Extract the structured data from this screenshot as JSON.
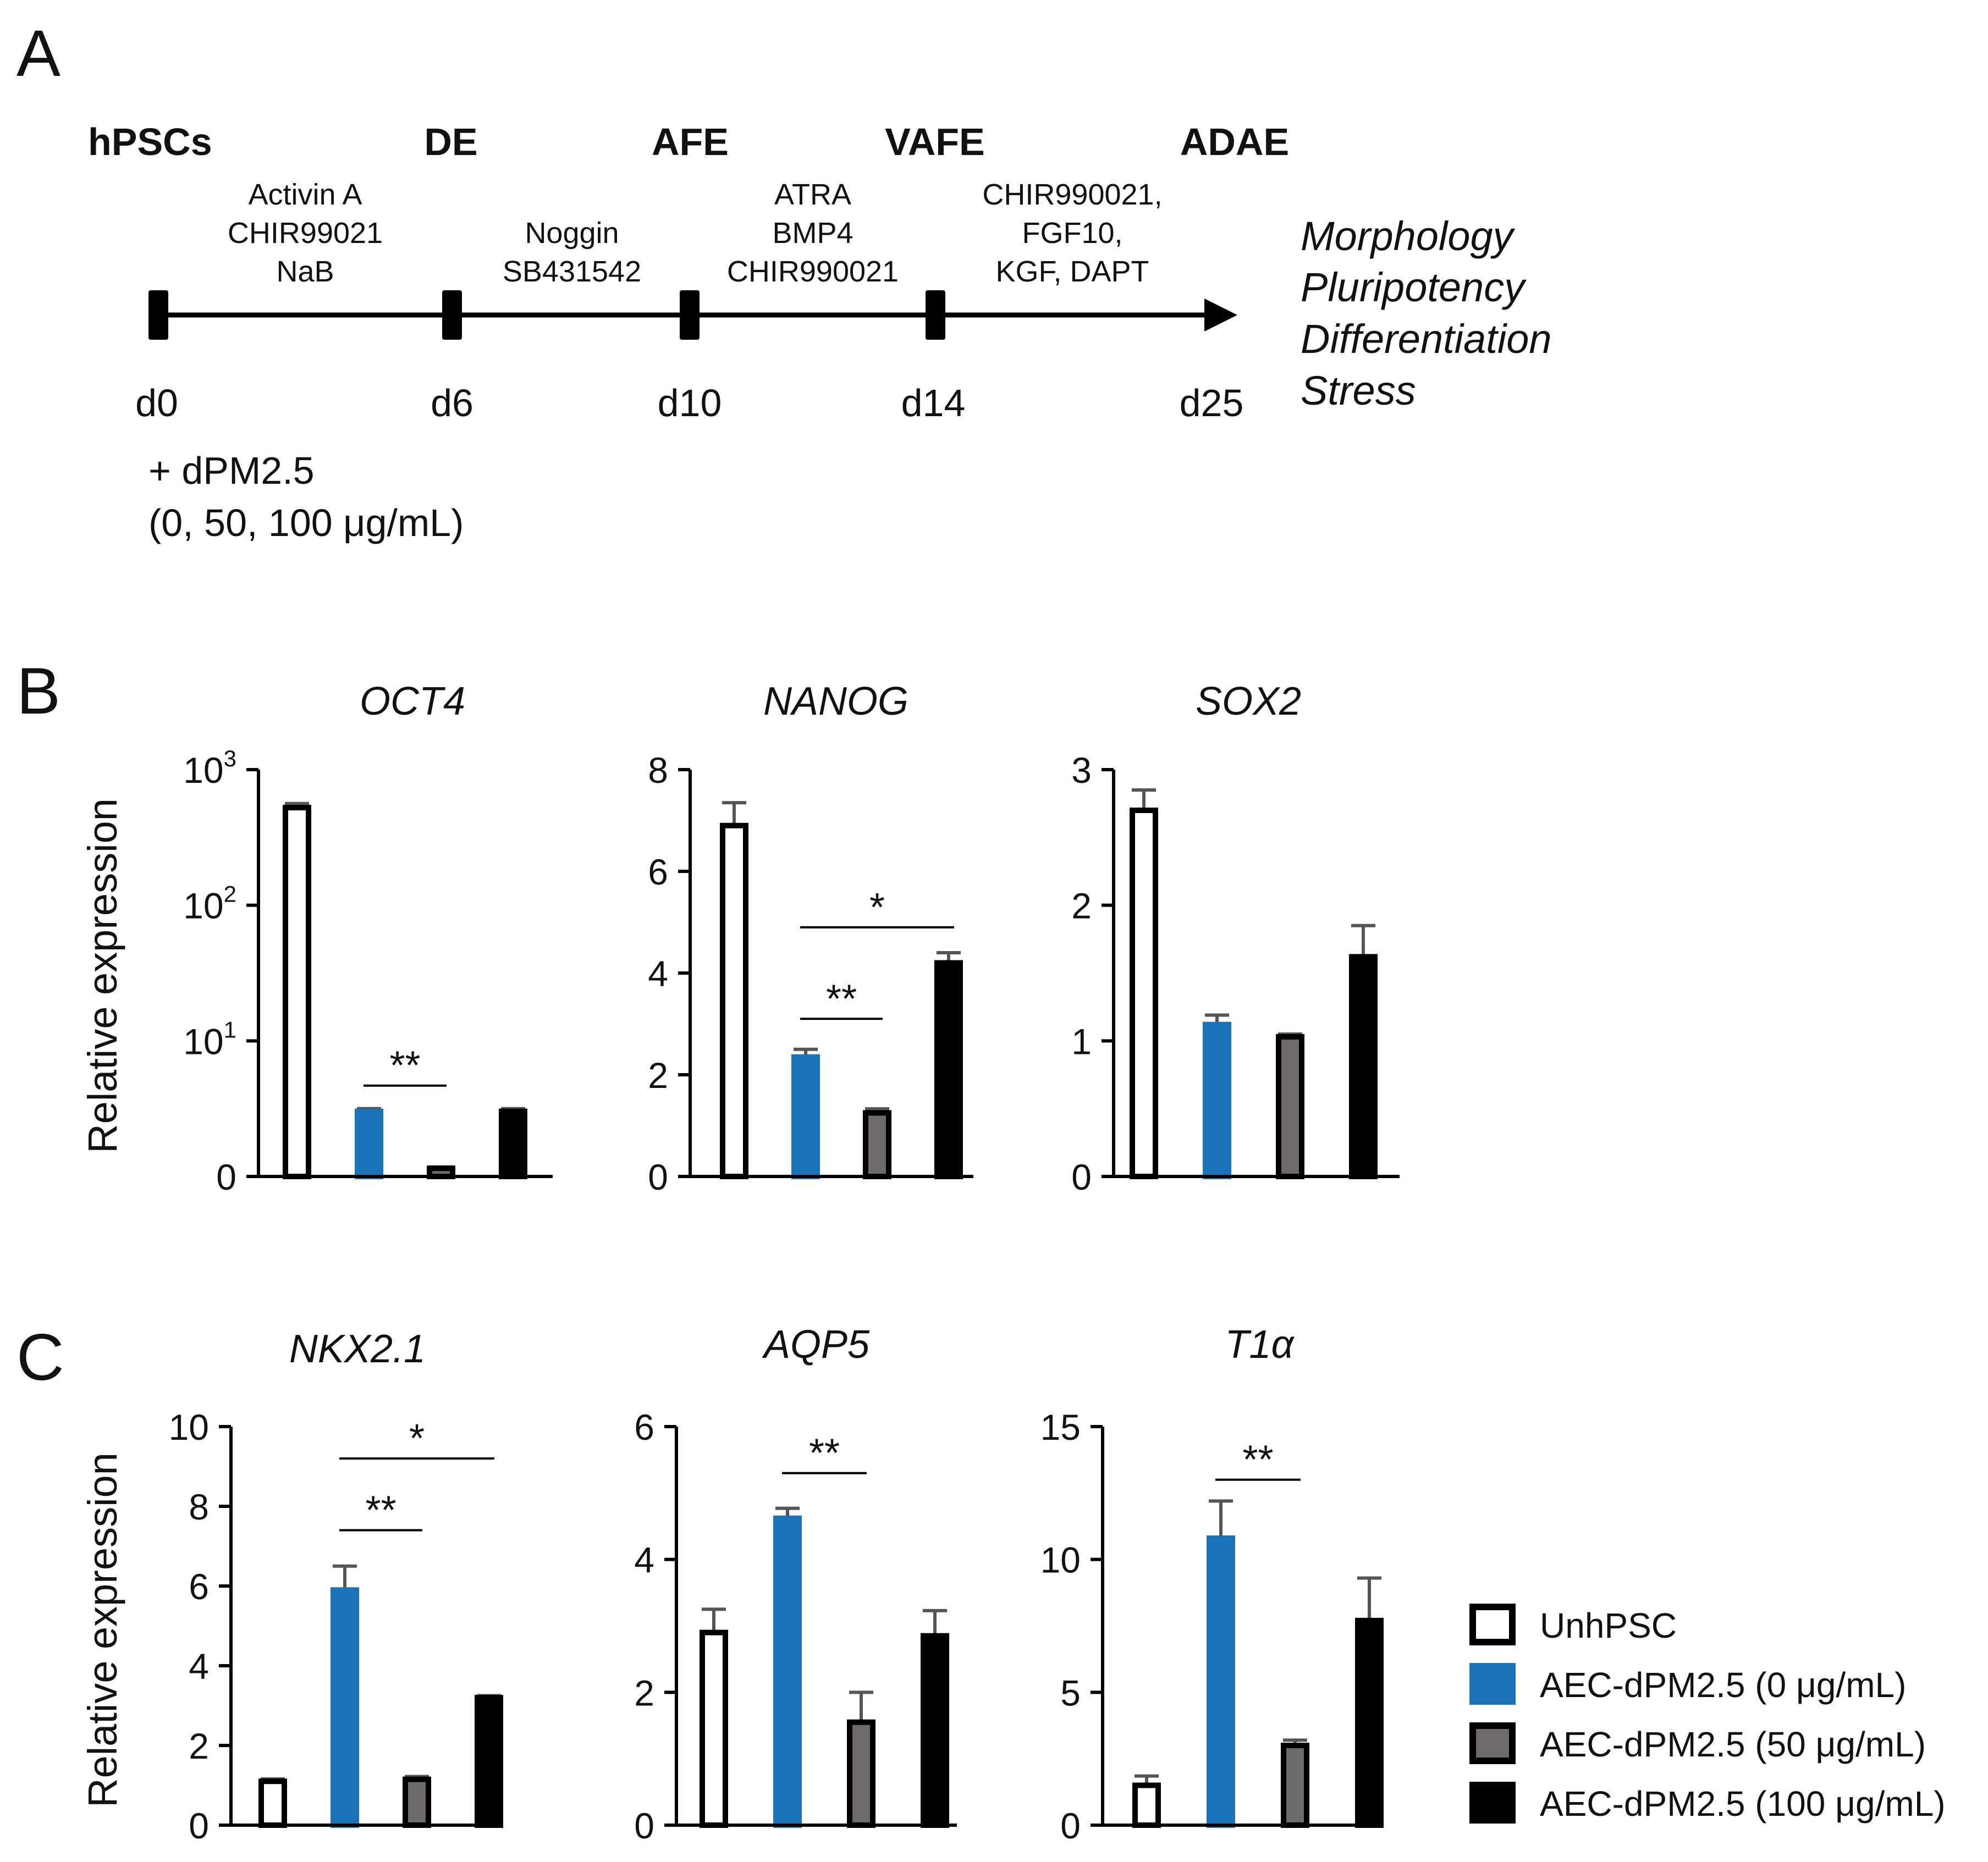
{
  "panel_labels": {
    "a": "A",
    "b": "B",
    "c": "C"
  },
  "timeline": {
    "stages": [
      "hPSCs",
      "DE",
      "AFE",
      "VAFE",
      "ADAE"
    ],
    "days": [
      "d0",
      "d6",
      "d10",
      "d14",
      "d25"
    ],
    "factors": [
      [
        "Activin A",
        "CHIR99021",
        "NaB"
      ],
      [
        "Noggin",
        "SB431542"
      ],
      [
        "ATRA",
        "BMP4",
        "CHIR990021"
      ],
      [
        "CHIR990021,",
        "FGF10,",
        "KGF, DAPT"
      ]
    ],
    "readouts": [
      "Morphology",
      "Pluripotency",
      "Differentiation",
      "Stress"
    ],
    "treatment": [
      "+ dPM2.5",
      "(0, 50, 100 μg/mL)"
    ]
  },
  "colors": {
    "unh": "#ffffff",
    "ctrl": "#1a73b8",
    "p50": "#6e6a6a",
    "p100": "#000000",
    "axis": "#000000",
    "errbar": "#555555"
  },
  "legend": [
    {
      "label": "UnhPSC",
      "key": "unh"
    },
    {
      "label": "AEC-dPM2.5 (0 μg/mL)",
      "key": "ctrl"
    },
    {
      "label": "AEC-dPM2.5 (50 μg/mL)",
      "key": "p50"
    },
    {
      "label": "AEC-dPM2.5 (100 μg/mL)",
      "key": "p100"
    }
  ],
  "ylabel": "Relative expression",
  "chart_data": [
    {
      "id": "oct4",
      "type": "bar",
      "title": "OCT4",
      "scale": "log",
      "yticks": [
        {
          "v": 0,
          "label": "0"
        },
        {
          "v": 1,
          "label": "10",
          "sup": "1"
        },
        {
          "v": 2,
          "label": "10",
          "sup": "2"
        },
        {
          "v": 3,
          "label": "10",
          "sup": "3"
        }
      ],
      "ylim": [
        0,
        3
      ],
      "categories": [
        "UnhPSC",
        "AEC-dPM2.5 (0 μg/mL)",
        "AEC-dPM2.5 (50 μg/mL)",
        "AEC-dPM2.5 (100 μg/mL)"
      ],
      "values": [
        2.72,
        0.48,
        0.06,
        0.48
      ],
      "errors": [
        0.03,
        0.02,
        0.01,
        0.02
      ],
      "sig": [
        {
          "from": 1,
          "to": 2,
          "label": "**",
          "level": 0.67
        }
      ]
    },
    {
      "id": "nanog",
      "type": "bar",
      "title": "NANOG",
      "yticks": [
        {
          "v": 0,
          "label": "0"
        },
        {
          "v": 2,
          "label": "2"
        },
        {
          "v": 4,
          "label": "4"
        },
        {
          "v": 6,
          "label": "6"
        },
        {
          "v": 8,
          "label": "8"
        }
      ],
      "ylim": [
        0,
        8
      ],
      "categories": [
        "UnhPSC",
        "AEC-dPM2.5 (0 μg/mL)",
        "AEC-dPM2.5 (50 μg/mL)",
        "AEC-dPM2.5 (100 μg/mL)"
      ],
      "values": [
        6.9,
        2.35,
        1.25,
        4.2
      ],
      "errors": [
        0.45,
        0.15,
        0.08,
        0.2
      ],
      "sig": [
        {
          "from": 1,
          "to": 2,
          "label": "**",
          "level": 3.1
        },
        {
          "from": 1,
          "to": 3,
          "label": "*",
          "level": 4.9
        }
      ]
    },
    {
      "id": "sox2",
      "type": "bar",
      "title": "SOX2",
      "yticks": [
        {
          "v": 0,
          "label": "0"
        },
        {
          "v": 1,
          "label": "1"
        },
        {
          "v": 2,
          "label": "2"
        },
        {
          "v": 3,
          "label": "3"
        }
      ],
      "ylim": [
        0,
        3
      ],
      "categories": [
        "UnhPSC",
        "AEC-dPM2.5 (0 μg/mL)",
        "AEC-dPM2.5 (50 μg/mL)",
        "AEC-dPM2.5 (100 μg/mL)"
      ],
      "values": [
        2.7,
        1.12,
        1.03,
        1.62
      ],
      "errors": [
        0.15,
        0.07,
        0.02,
        0.23
      ],
      "sig": []
    },
    {
      "id": "nkx21",
      "type": "bar",
      "title": "NKX2.1",
      "yticks": [
        {
          "v": 0,
          "label": "0"
        },
        {
          "v": 2,
          "label": "2"
        },
        {
          "v": 4,
          "label": "4"
        },
        {
          "v": 6,
          "label": "6"
        },
        {
          "v": 8,
          "label": "8"
        },
        {
          "v": 10,
          "label": "10"
        }
      ],
      "ylim": [
        0,
        10
      ],
      "categories": [
        "UnhPSC",
        "AEC-dPM2.5 (0 μg/mL)",
        "AEC-dPM2.5 (50 μg/mL)",
        "AEC-dPM2.5 (100 μg/mL)"
      ],
      "values": [
        1.1,
        5.9,
        1.15,
        3.2
      ],
      "errors": [
        0.06,
        0.6,
        0.07,
        0.05
      ],
      "sig": [
        {
          "from": 1,
          "to": 2,
          "label": "**",
          "level": 7.4
        },
        {
          "from": 1,
          "to": 3,
          "label": "*",
          "level": 9.2
        }
      ]
    },
    {
      "id": "aqp5",
      "type": "bar",
      "title": "AQP5",
      "yticks": [
        {
          "v": 0,
          "label": "0"
        },
        {
          "v": 2,
          "label": "2"
        },
        {
          "v": 4,
          "label": "4"
        },
        {
          "v": 6,
          "label": "6"
        }
      ],
      "ylim": [
        0,
        6
      ],
      "categories": [
        "UnhPSC",
        "AEC-dPM2.5 (0 μg/mL)",
        "AEC-dPM2.5 (50 μg/mL)",
        "AEC-dPM2.5 (100 μg/mL)"
      ],
      "values": [
        2.9,
        4.62,
        1.55,
        2.85
      ],
      "errors": [
        0.35,
        0.15,
        0.45,
        0.38
      ],
      "sig": [
        {
          "from": 1,
          "to": 2,
          "label": "**",
          "level": 5.3
        }
      ]
    },
    {
      "id": "t1a",
      "type": "bar",
      "title": "T1α",
      "yticks": [
        {
          "v": 0,
          "label": "0"
        },
        {
          "v": 5,
          "label": "5"
        },
        {
          "v": 10,
          "label": "10"
        },
        {
          "v": 15,
          "label": "15"
        }
      ],
      "ylim": [
        0,
        15
      ],
      "categories": [
        "UnhPSC",
        "AEC-dPM2.5 (0 μg/mL)",
        "AEC-dPM2.5 (50 μg/mL)",
        "AEC-dPM2.5 (100 μg/mL)"
      ],
      "values": [
        1.5,
        10.8,
        3.0,
        7.7
      ],
      "errors": [
        0.35,
        1.4,
        0.2,
        1.6
      ],
      "sig": [
        {
          "from": 1,
          "to": 2,
          "label": "**",
          "level": 13.0
        }
      ]
    }
  ]
}
